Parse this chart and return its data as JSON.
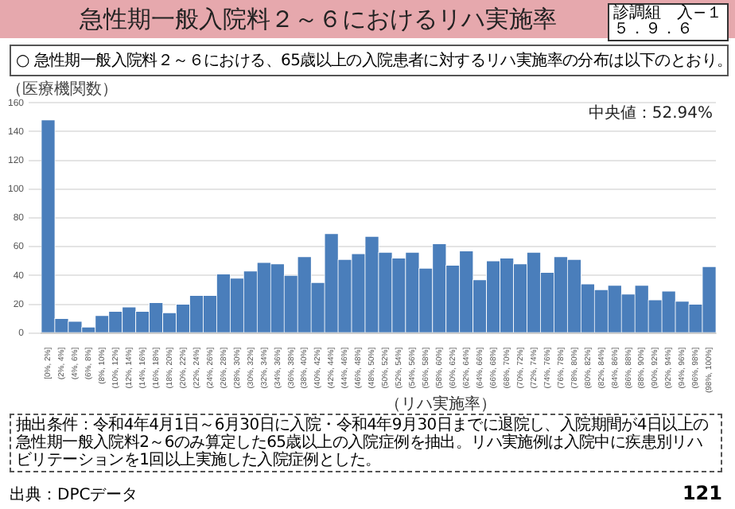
{
  "chart_data": {
    "type": "bar",
    "title": "急性期一般入院料２～６におけるリハ実施率",
    "subtitle": "○ 急性期一般入院料２～６における、65歳以上の入院患者に対するリハ実施率の分布は以下のとおり。",
    "ylabel": "（医療機関数）",
    "xlabel": "（リハ実施率）",
    "categories": [
      "[0%, 2%]",
      "(2%, 4%]",
      "(4%, 6%]",
      "(6%, 8%]",
      "(8%, 10%]",
      "(10%, 12%]",
      "(12%, 14%]",
      "(14%, 16%]",
      "(16%, 18%]",
      "(18%, 20%]",
      "(20%, 22%]",
      "(22%, 24%]",
      "(24%, 26%]",
      "(26%, 28%]",
      "(28%, 30%]",
      "(30%, 32%]",
      "(32%, 34%]",
      "(34%, 36%]",
      "(36%, 38%]",
      "(38%, 40%]",
      "(40%, 42%]",
      "(42%, 44%]",
      "(44%, 46%]",
      "(46%, 48%]",
      "(48%, 50%]",
      "(50%, 52%]",
      "(52%, 54%]",
      "(54%, 56%]",
      "(56%, 58%]",
      "(58%, 60%]",
      "(60%, 62%]",
      "(62%, 64%]",
      "(64%, 66%]",
      "(66%, 68%]",
      "(68%, 70%]",
      "(70%, 72%]",
      "(72%, 74%]",
      "(74%, 76%]",
      "(76%, 78%]",
      "(78%, 80%]",
      "(80%, 82%]",
      "(82%, 84%]",
      "(84%, 86%]",
      "(86%, 88%]",
      "(88%, 90%]",
      "(90%, 92%]",
      "(92%, 94%]",
      "(94%, 96%]",
      "(96%, 98%]",
      "(98%, 100%]"
    ],
    "values": [
      148,
      10,
      8,
      4,
      12,
      15,
      18,
      15,
      21,
      14,
      20,
      26,
      26,
      41,
      38,
      43,
      49,
      48,
      40,
      53,
      35,
      69,
      51,
      55,
      67,
      56,
      52,
      56,
      45,
      62,
      47,
      57,
      37,
      50,
      52,
      48,
      56,
      42,
      53,
      51,
      34,
      30,
      33,
      27,
      33,
      23,
      29,
      22,
      20,
      46
    ],
    "color": "#4a7ebb",
    "ylim": [
      0,
      160
    ],
    "yticks": [
      0,
      20,
      40,
      60,
      80,
      100,
      120,
      140,
      160
    ],
    "grid": "y",
    "annotations": [
      "中央値：52.94%",
      "抽出条件：令和4年4月1日～6月30日に入院・令和4年9月30日までに退院し、入院期間が4日以上の急性期一般入院料2～6のみ算定した65歳以上の入院症例を抽出。リハ実施例は入院中に疾患別リハビリテーションを1回以上実施した入院症例とした。",
      "出典：DPCデータ",
      "121",
      "診調組　入−１",
      "５．９．６"
    ]
  }
}
